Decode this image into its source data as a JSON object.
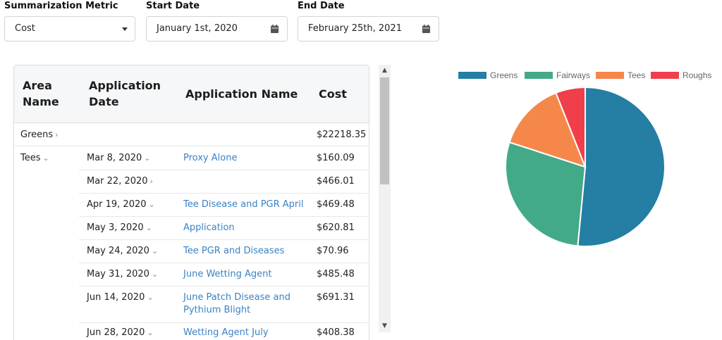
{
  "filters": {
    "metric": {
      "label": "Summarization Metric",
      "value": "Cost"
    },
    "start": {
      "label": "Start Date",
      "value": "January 1st, 2020"
    },
    "end": {
      "label": "End Date",
      "value": "February 25th, 2021"
    }
  },
  "table": {
    "headers": [
      "Area Name",
      "Application Date",
      "Application Name",
      "Cost"
    ],
    "header_lines": {
      "area": [
        "Area",
        "Name"
      ],
      "date": [
        "Application",
        "Date"
      ],
      "name": "Application Name",
      "cost": "Cost"
    },
    "rows": [
      {
        "area": "Greens",
        "area_chevron": "›",
        "date": "",
        "date_chevron": "",
        "name": "",
        "name2": "",
        "cost": "$22218.35"
      },
      {
        "area": "Tees",
        "area_chevron": "⌄",
        "date": "Mar 8, 2020",
        "date_chevron": "⌄",
        "name": "Proxy Alone",
        "name2": "",
        "cost": "$160.09"
      },
      {
        "area": "",
        "area_chevron": "",
        "date": "Mar 22, 2020",
        "date_chevron": "›",
        "name": "",
        "name2": "",
        "cost": "$466.01"
      },
      {
        "area": "",
        "area_chevron": "",
        "date": "Apr 19, 2020",
        "date_chevron": "⌄",
        "name": "Tee Disease and PGR April",
        "name2": "",
        "cost": "$469.48"
      },
      {
        "area": "",
        "area_chevron": "",
        "date": "May 3, 2020",
        "date_chevron": "⌄",
        "name": "Application",
        "name2": "",
        "cost": "$620.81"
      },
      {
        "area": "",
        "area_chevron": "",
        "date": "May 24, 2020",
        "date_chevron": "⌄",
        "name": "Tee PGR and Diseases",
        "name2": "",
        "cost": "$70.96"
      },
      {
        "area": "",
        "area_chevron": "",
        "date": "May 31, 2020",
        "date_chevron": "⌄",
        "name": "June Wetting Agent",
        "name2": "",
        "cost": "$485.48"
      },
      {
        "area": "",
        "area_chevron": "",
        "date": "Jun 14, 2020",
        "date_chevron": "⌄",
        "name": "June Patch Disease and",
        "name2": "Pythium Blight",
        "cost": "$691.31"
      },
      {
        "area": "",
        "area_chevron": "",
        "date": "Jun 28, 2020",
        "date_chevron": "⌄",
        "name": "Wetting Agent July",
        "name2": "",
        "cost": "$408.38"
      }
    ]
  },
  "scrollbar": {
    "up": "▲",
    "down": "▼"
  },
  "chart_data": {
    "type": "pie",
    "legend_position": "top",
    "labels": [
      "Greens",
      "Fairways",
      "Tees",
      "Roughs"
    ],
    "values": [
      51.5,
      28.5,
      14,
      6
    ],
    "colors": [
      "#257ea3",
      "#43aa89",
      "#f5874a",
      "#f03f4a"
    ]
  }
}
